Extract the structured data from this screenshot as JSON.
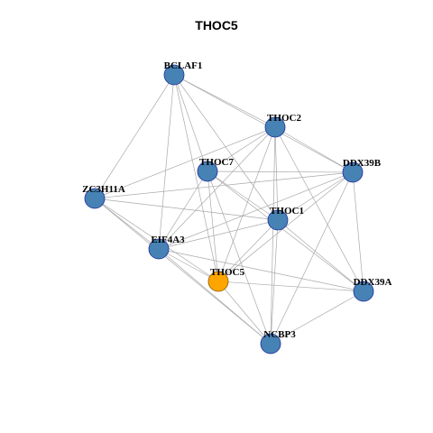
{
  "title": "THOC5",
  "colors": {
    "node_default": "#4682B4",
    "node_highlight": "#FFA500",
    "node_border": "#1f2f9e",
    "edge": "#a9a9a9"
  },
  "nodes": [
    {
      "id": "BCLAF1",
      "label": "BCLAF1",
      "highlight": false
    },
    {
      "id": "THOC2",
      "label": "THOC2",
      "highlight": false
    },
    {
      "id": "THOC7",
      "label": "THOC7",
      "highlight": false
    },
    {
      "id": "DDX39B",
      "label": "DDX39B",
      "highlight": false
    },
    {
      "id": "ZC3H11A",
      "label": "ZC3H11A",
      "highlight": false
    },
    {
      "id": "THOC1",
      "label": "THOC1",
      "highlight": false
    },
    {
      "id": "EIF4A3",
      "label": "EIF4A3",
      "highlight": false
    },
    {
      "id": "THOC5",
      "label": "THOC5",
      "highlight": true
    },
    {
      "id": "DDX39A",
      "label": "DDX39A",
      "highlight": false
    },
    {
      "id": "NCBP3",
      "label": "NCBP3",
      "highlight": false
    }
  ],
  "edges": [
    [
      "BCLAF1",
      "THOC2"
    ],
    [
      "BCLAF1",
      "DDX39B"
    ],
    [
      "BCLAF1",
      "ZC3H11A"
    ],
    [
      "BCLAF1",
      "THOC7"
    ],
    [
      "BCLAF1",
      "THOC1"
    ],
    [
      "BCLAF1",
      "EIF4A3"
    ],
    [
      "BCLAF1",
      "THOC5"
    ],
    [
      "THOC2",
      "THOC7"
    ],
    [
      "THOC2",
      "DDX39B"
    ],
    [
      "THOC2",
      "ZC3H11A"
    ],
    [
      "THOC2",
      "THOC1"
    ],
    [
      "THOC2",
      "EIF4A3"
    ],
    [
      "THOC2",
      "THOC5"
    ],
    [
      "THOC2",
      "DDX39A"
    ],
    [
      "THOC2",
      "NCBP3"
    ],
    [
      "THOC7",
      "DDX39B"
    ],
    [
      "THOC7",
      "THOC1"
    ],
    [
      "THOC7",
      "EIF4A3"
    ],
    [
      "THOC7",
      "THOC5"
    ],
    [
      "THOC7",
      "DDX39A"
    ],
    [
      "THOC7",
      "NCBP3"
    ],
    [
      "DDX39B",
      "ZC3H11A"
    ],
    [
      "DDX39B",
      "THOC1"
    ],
    [
      "DDX39B",
      "EIF4A3"
    ],
    [
      "DDX39B",
      "THOC5"
    ],
    [
      "DDX39B",
      "DDX39A"
    ],
    [
      "DDX39B",
      "NCBP3"
    ],
    [
      "ZC3H11A",
      "THOC1"
    ],
    [
      "ZC3H11A",
      "EIF4A3"
    ],
    [
      "ZC3H11A",
      "THOC5"
    ],
    [
      "ZC3H11A",
      "NCBP3"
    ],
    [
      "THOC1",
      "EIF4A3"
    ],
    [
      "THOC1",
      "THOC5"
    ],
    [
      "THOC1",
      "DDX39A"
    ],
    [
      "THOC1",
      "NCBP3"
    ],
    [
      "EIF4A3",
      "THOC5"
    ],
    [
      "EIF4A3",
      "DDX39A"
    ],
    [
      "EIF4A3",
      "NCBP3"
    ],
    [
      "THOC5",
      "DDX39A"
    ],
    [
      "THOC5",
      "NCBP3"
    ],
    [
      "DDX39A",
      "NCBP3"
    ]
  ]
}
